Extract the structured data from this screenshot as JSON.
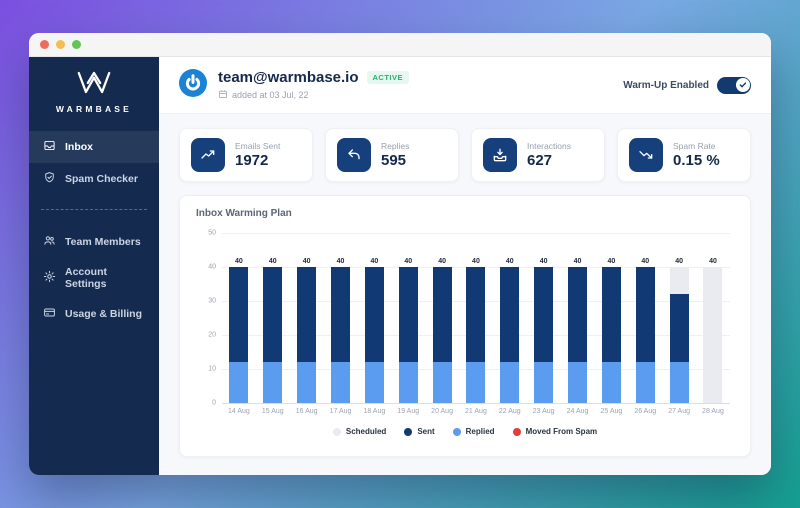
{
  "titlebar": {
    "buttons": [
      "close",
      "minimize",
      "zoom"
    ]
  },
  "sidebar": {
    "logo_text": "WARMBASE",
    "nav_primary": [
      {
        "label": "Inbox",
        "icon": "inbox",
        "active": true
      },
      {
        "label": "Spam Checker",
        "icon": "shield-check",
        "active": false
      }
    ],
    "nav_secondary": [
      {
        "label": "Team Members",
        "icon": "users",
        "active": false
      },
      {
        "label": "Account Settings",
        "icon": "gear",
        "active": false
      },
      {
        "label": "Usage & Billing",
        "icon": "credit-card",
        "active": false
      }
    ]
  },
  "header": {
    "email": "team@warmbase.io",
    "status_badge": "ACTIVE",
    "added_text": "added at 03 Jul, 22",
    "toggle_label": "Warm-Up Enabled",
    "toggle_on": true
  },
  "stats": [
    {
      "label": "Emails Sent",
      "value": "1972",
      "icon": "trending-up"
    },
    {
      "label": "Replies",
      "value": "595",
      "icon": "reply"
    },
    {
      "label": "Interactions",
      "value": "627",
      "icon": "inbox-in"
    },
    {
      "label": "Spam Rate",
      "value": "0.15 %",
      "icon": "trending-down"
    }
  ],
  "chart_data": {
    "type": "bar",
    "stacked": true,
    "title": "Inbox Warming Plan",
    "categories": [
      "14 Aug",
      "15 Aug",
      "16 Aug",
      "17 Aug",
      "18 Aug",
      "19 Aug",
      "20 Aug",
      "21 Aug",
      "22 Aug",
      "23 Aug",
      "24 Aug",
      "25 Aug",
      "26 Aug",
      "27 Aug",
      "28 Aug"
    ],
    "series": [
      {
        "name": "Scheduled",
        "color": "#e9ebf0",
        "values": [
          0,
          0,
          0,
          0,
          0,
          0,
          0,
          0,
          0,
          0,
          0,
          0,
          0,
          8,
          40
        ]
      },
      {
        "name": "Sent",
        "color": "#113a74",
        "values": [
          28,
          28,
          28,
          28,
          28,
          28,
          28,
          28,
          28,
          28,
          28,
          28,
          28,
          20,
          0
        ]
      },
      {
        "name": "Replied",
        "color": "#5b9cf0",
        "values": [
          12,
          12,
          12,
          12,
          12,
          12,
          12,
          12,
          12,
          12,
          12,
          12,
          12,
          12,
          0
        ]
      },
      {
        "name": "Moved From Spam",
        "color": "#e23c3c",
        "values": [
          0,
          0,
          0,
          0,
          0,
          0,
          0,
          0,
          0,
          0,
          0,
          0,
          0,
          0,
          0
        ]
      }
    ],
    "stack_order_bottom_up": [
      "Replied",
      "Sent",
      "Scheduled",
      "Moved From Spam"
    ],
    "bar_totals": [
      40,
      40,
      40,
      40,
      40,
      40,
      40,
      40,
      40,
      40,
      40,
      40,
      40,
      40,
      40
    ],
    "ylim": [
      0,
      50
    ],
    "yticks": [
      0,
      10,
      20,
      30,
      40,
      50
    ],
    "grid": true,
    "legend_position": "bottom"
  },
  "colors": {
    "sidebar_bg": "#142a4f",
    "accent_navy": "#15407c",
    "brand_blue": "#1b82d4",
    "badge_green": "#27b06c",
    "toggle_on": "#123a70"
  }
}
